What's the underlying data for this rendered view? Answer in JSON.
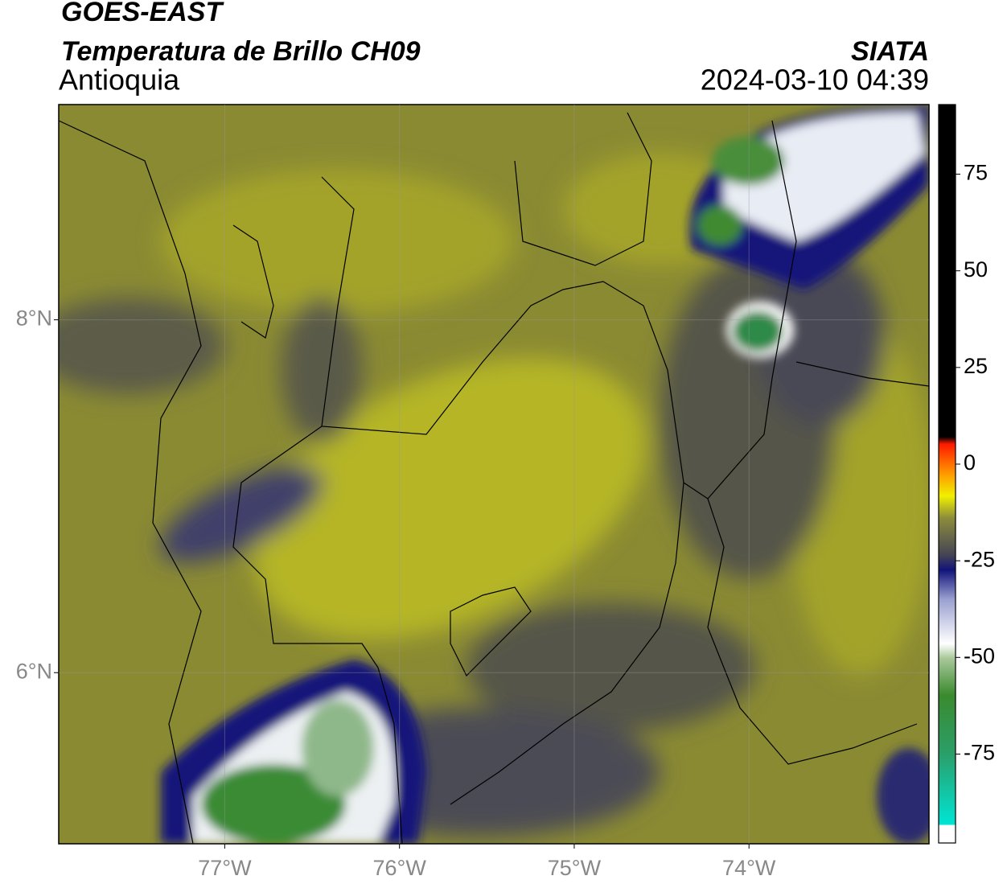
{
  "chart_data": {
    "type": "contour-map",
    "title": "GOES-EAST",
    "subtitle": "Temperatura de Brillo CH09",
    "region": "Antioquia",
    "source": "SIATA",
    "timestamp": "2024-03-10 04:39",
    "xlim": [
      -77.95,
      -72.97
    ],
    "ylim": [
      5.03,
      9.22
    ],
    "xticks": [
      {
        "value": -77,
        "label": "77°W"
      },
      {
        "value": -76,
        "label": "76°W"
      },
      {
        "value": -75,
        "label": "75°W"
      },
      {
        "value": -74,
        "label": "74°W"
      }
    ],
    "yticks": [
      {
        "value": 8,
        "label": "8°N"
      },
      {
        "value": 6,
        "label": "6°N"
      }
    ],
    "grid": true,
    "clim": [
      -98,
      93
    ],
    "cticks": [
      75,
      50,
      25,
      0,
      -25,
      -50,
      -75
    ]
  }
}
